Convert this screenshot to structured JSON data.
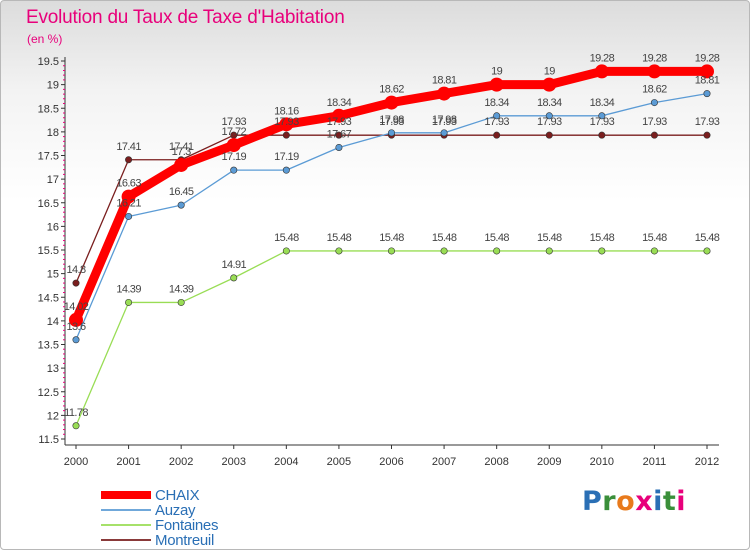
{
  "header": {
    "title": "Evolution du Taux de Taxe d'Habitation",
    "unit_label": "(en %)"
  },
  "logo": {
    "text": "Proxiti",
    "letter_colors": [
      "#2a6fb5",
      "#3a8f3a",
      "#e87a1c",
      "#e8007b",
      "#2a6fb5",
      "#3a8f3a",
      "#e8007b"
    ]
  },
  "chart_data": {
    "type": "line",
    "title": "Evolution du Taux de Taxe d'Habitation",
    "ylabel": "(en %)",
    "xlabel": "",
    "categories": [
      "2000",
      "2001",
      "2002",
      "2003",
      "2004",
      "2005",
      "2006",
      "2007",
      "2008",
      "2009",
      "2010",
      "2011",
      "2012"
    ],
    "ylim": [
      11.5,
      19.5
    ],
    "yticks": [
      11.5,
      12,
      12.5,
      13,
      13.5,
      14,
      14.5,
      15,
      15.5,
      16,
      16.5,
      17,
      17.5,
      18,
      18.5,
      19,
      19.5
    ],
    "grid": false,
    "legend_position": "bottom-left",
    "series": [
      {
        "name": "CHAIX",
        "color": "#ff0000",
        "values": [
          14.02,
          16.63,
          17.3,
          17.72,
          18.16,
          18.34,
          18.62,
          18.81,
          19,
          19,
          19.28,
          19.28,
          19.28
        ],
        "labels": [
          "14.02",
          "16.63",
          "17.3",
          "17.72",
          "18.16",
          "18.34",
          "18.62",
          "18.81",
          "19",
          "19",
          "19.28",
          "19.28",
          "19.28"
        ]
      },
      {
        "name": "Auzay",
        "color": "#5b9bd5",
        "values": [
          13.6,
          16.21,
          16.45,
          17.19,
          17.19,
          17.67,
          17.98,
          17.98,
          18.34,
          18.34,
          18.34,
          18.62,
          18.81
        ],
        "labels": [
          "13.6",
          "16.21",
          "16.45",
          "17.19",
          "17.19",
          "17.67",
          "17.98",
          "17.98",
          "18.34",
          "18.34",
          "18.34",
          "18.62",
          "18.81"
        ]
      },
      {
        "name": "Fontaines",
        "color": "#99dd55",
        "values": [
          11.78,
          14.39,
          14.39,
          14.91,
          15.48,
          15.48,
          15.48,
          15.48,
          15.48,
          15.48,
          15.48,
          15.48,
          15.48
        ],
        "labels": [
          "11.78",
          "14.39",
          "14.39",
          "14.91",
          "15.48",
          "15.48",
          "15.48",
          "15.48",
          "15.48",
          "15.48",
          "15.48",
          "15.48",
          "15.48"
        ]
      },
      {
        "name": "Montreuil",
        "color": "#7a1e1e",
        "values": [
          14.8,
          17.41,
          17.41,
          17.93,
          17.93,
          17.93,
          17.93,
          17.93,
          17.93,
          17.93,
          17.93,
          17.93,
          17.93
        ],
        "labels": [
          "14.8",
          "17.41",
          "17.41",
          "17.93",
          "17.93",
          "17.93",
          "17.93",
          "17.93",
          "17.93",
          "17.93",
          "17.93",
          "17.93",
          "17.93"
        ]
      }
    ]
  }
}
